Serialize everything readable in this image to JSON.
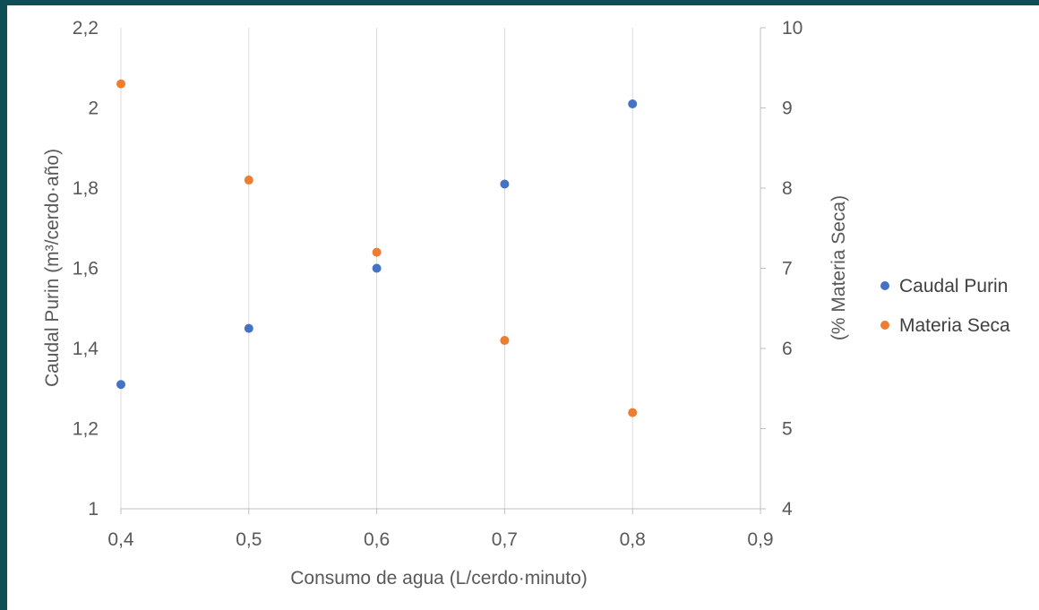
{
  "chart_data": {
    "type": "scatter",
    "title": "",
    "xlabel": "Consumo de agua (L/cerdo·minuto)",
    "ylabel_left": "Caudal Purin (m³/cerdo·año)",
    "ylabel_right": "(% Materia Seca)",
    "xlim": [
      0.4,
      0.9
    ],
    "ylim_left": [
      1,
      2.2
    ],
    "ylim_right": [
      4,
      10
    ],
    "x_ticks": [
      "0,4",
      "0,5",
      "0,6",
      "0,7",
      "0,8",
      "0,9"
    ],
    "y_left_ticks": [
      "1",
      "1,2",
      "1,4",
      "1,6",
      "1,8",
      "2",
      "2,2"
    ],
    "y_right_ticks": [
      "4",
      "5",
      "6",
      "7",
      "8",
      "9",
      "10"
    ],
    "grid": "vertical",
    "legend_position": "right",
    "series": [
      {
        "name": "Caudal Purin",
        "axis": "left",
        "color": "#4472c4",
        "x": [
          0.4,
          0.5,
          0.6,
          0.7,
          0.8
        ],
        "y": [
          1.31,
          1.45,
          1.6,
          1.81,
          2.01
        ]
      },
      {
        "name": "Materia Seca",
        "axis": "right",
        "color": "#ed7d31",
        "x": [
          0.4,
          0.5,
          0.6,
          0.7,
          0.8
        ],
        "y": [
          9.3,
          8.1,
          7.2,
          6.1,
          5.2
        ]
      }
    ]
  }
}
